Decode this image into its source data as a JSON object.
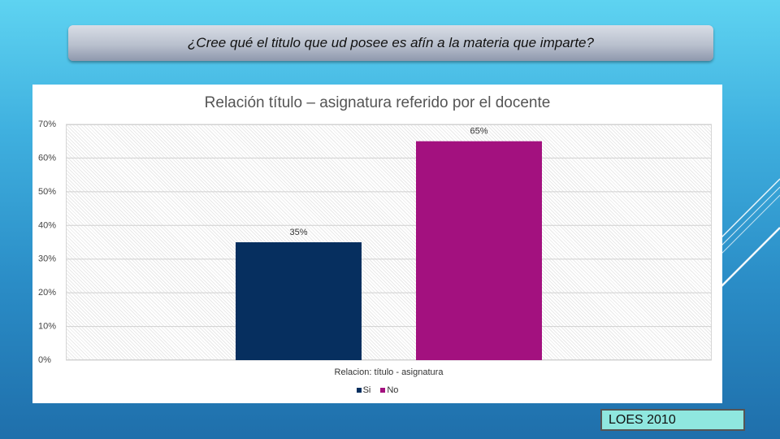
{
  "question": "¿Cree qué el titulo que ud posee es afín a la materia que imparte?",
  "source_label": "LOES 2010",
  "chart_data": {
    "type": "bar",
    "title": "Relación título – asignatura referido por el docente",
    "categories": [
      "Relacion: título - asignatura"
    ],
    "xlabel": "",
    "ylabel": "",
    "ylim": [
      0,
      70
    ],
    "y_ticks": [
      {
        "value": 0,
        "label": "0%"
      },
      {
        "value": 10,
        "label": "10%"
      },
      {
        "value": 20,
        "label": "20%"
      },
      {
        "value": 30,
        "label": "30%"
      },
      {
        "value": 40,
        "label": "40%"
      },
      {
        "value": 50,
        "label": "50%"
      },
      {
        "value": 60,
        "label": "60%"
      },
      {
        "value": 70,
        "label": "70%"
      }
    ],
    "series": [
      {
        "name": "Si",
        "values": [
          35
        ],
        "label": "35%",
        "color": "#062f5f"
      },
      {
        "name": "No",
        "values": [
          65
        ],
        "label": "65%",
        "color": "#a3117f"
      }
    ],
    "grid": true,
    "legend": "bottom"
  }
}
